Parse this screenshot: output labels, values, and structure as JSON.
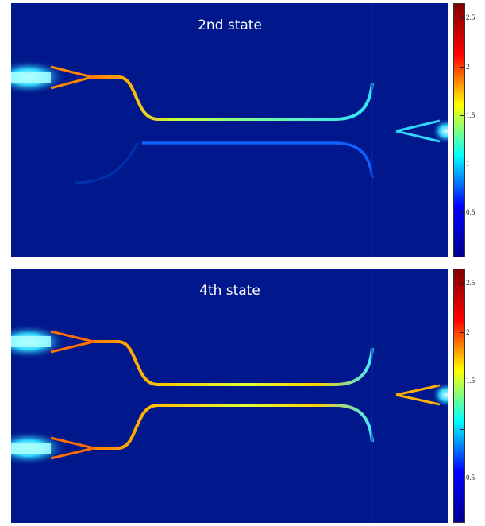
{
  "panels": [
    {
      "title": "2nd state",
      "inputs_lit": 1
    },
    {
      "title": "4th state",
      "inputs_lit": 2
    }
  ],
  "colorbar": {
    "ticks": [
      "2.5",
      "2",
      "1.5",
      "1",
      "0.5"
    ],
    "tick_values": [
      2.5,
      2.0,
      1.5,
      1.0,
      0.5
    ],
    "range": [
      0.05,
      2.65
    ],
    "colormap": [
      "#00008f",
      "#0000ff",
      "#00ffff",
      "#ffff00",
      "#ff0000",
      "#800000"
    ]
  },
  "colors": {
    "background": "#00188c"
  }
}
